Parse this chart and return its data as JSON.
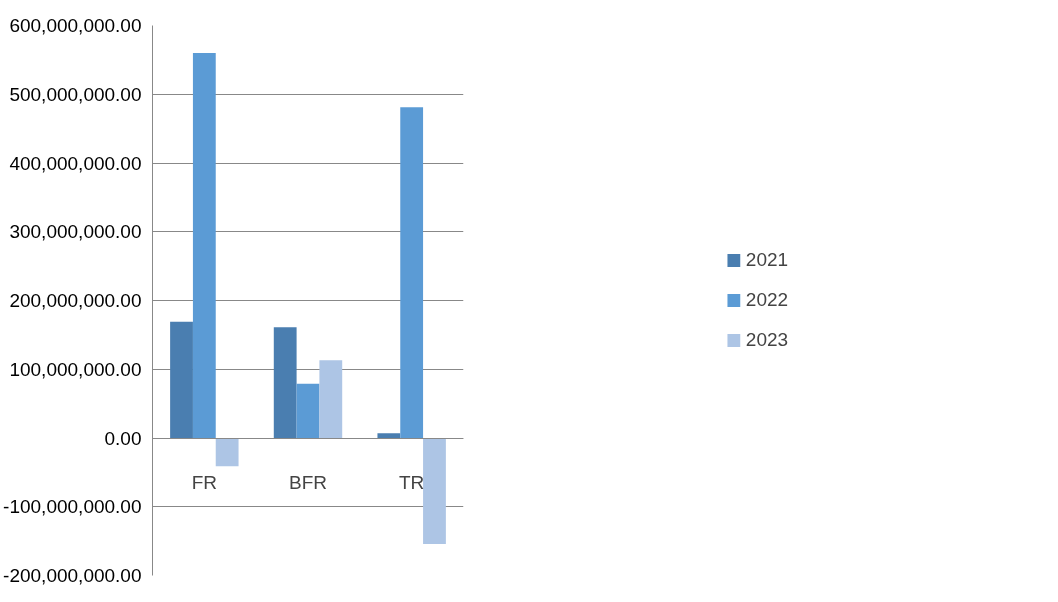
{
  "chart_data": {
    "type": "bar",
    "categories": [
      "FR",
      "BFR",
      "TR"
    ],
    "series": [
      {
        "name": "2021",
        "color": "#4a7eb0",
        "values": [
          169000000,
          161000000,
          7000000
        ]
      },
      {
        "name": "2022",
        "color": "#5b9bd5",
        "values": [
          560000000,
          79000000,
          481000000
        ]
      },
      {
        "name": "2023",
        "color": "#adc5e5",
        "values": [
          -41000000,
          113000000,
          -154000000
        ]
      }
    ],
    "ylim": [
      -200000000,
      600000000
    ],
    "yticks": [
      {
        "value": -200000000,
        "label": "-200,000,000.00"
      },
      {
        "value": -100000000,
        "label": "-100,000,000.00"
      },
      {
        "value": 0,
        "label": "0.00"
      },
      {
        "value": 100000000,
        "label": "100,000,000.00"
      },
      {
        "value": 200000000,
        "label": "200,000,000.00"
      },
      {
        "value": 300000000,
        "label": "300,000,000.00"
      },
      {
        "value": 400000000,
        "label": "400,000,000.00"
      },
      {
        "value": 500000000,
        "label": "500,000,000.00"
      },
      {
        "value": 600000000,
        "label": "600,000,000.00"
      }
    ],
    "grid": "y",
    "legend": "right"
  }
}
